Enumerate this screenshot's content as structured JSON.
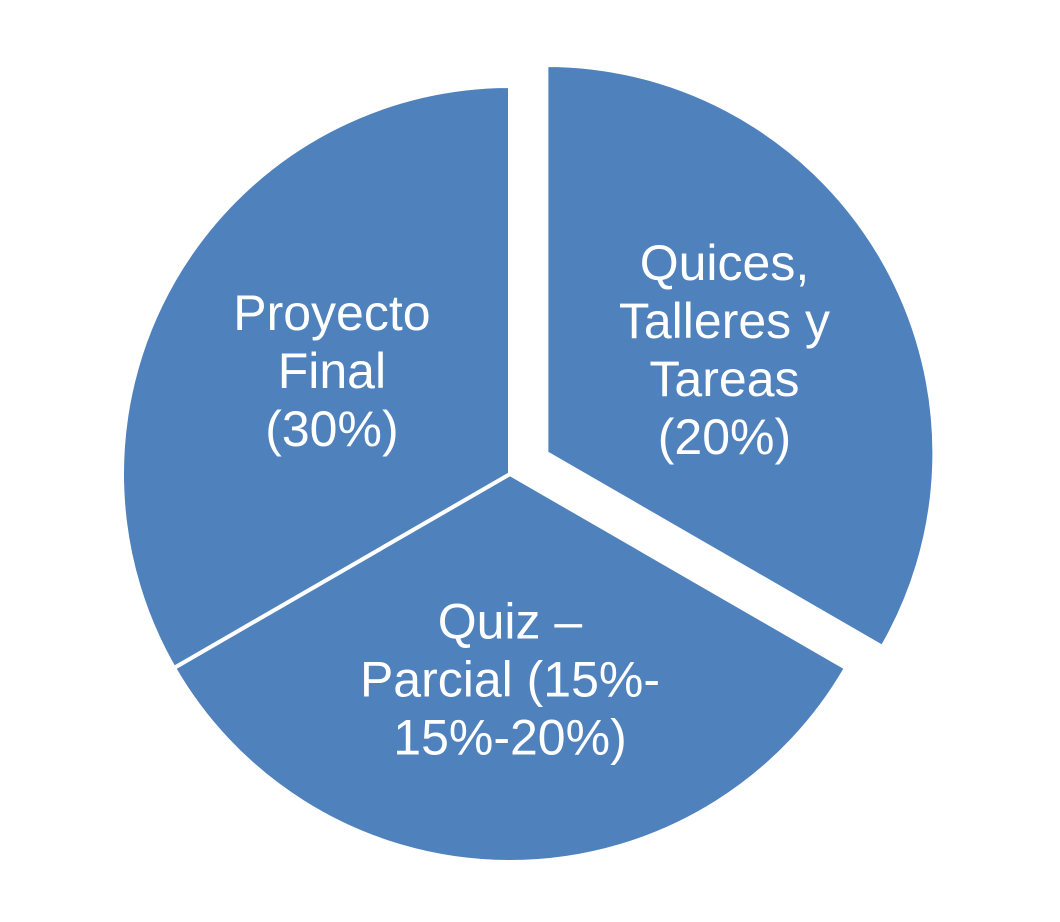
{
  "chart_data": {
    "type": "pie",
    "title": "",
    "colors": {
      "slice": "#4f81bd",
      "separator": "#ffffff",
      "text": "#ffffff"
    },
    "slices": [
      {
        "label_lines": [
          "Quices,",
          "Talleres y",
          "Tareas",
          "(20%)"
        ],
        "value": 120,
        "exploded": true
      },
      {
        "label_lines": [
          "Quiz –",
          "Parcial (15%-",
          "15%-20%)"
        ],
        "value": 120,
        "exploded": false
      },
      {
        "label_lines": [
          "Proyecto",
          "Final",
          "(30%)"
        ],
        "value": 120,
        "exploded": false
      }
    ]
  }
}
